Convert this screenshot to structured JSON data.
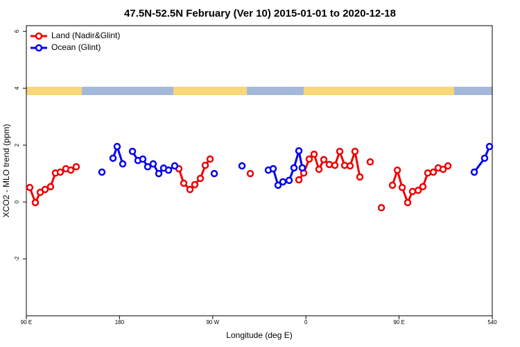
{
  "chart_data": {
    "type": "line",
    "title": "47.5N-52.5N February (Ver 10)   2015-01-01 to 2020-12-18",
    "x_label": "Longitude (deg E)",
    "y_label": "XCO2 - MLO trend (ppm)",
    "xlim": [
      90,
      540
    ],
    "ylim": [
      -4,
      6.2
    ],
    "xticks": [
      {
        "value": 90,
        "label": "90 E"
      },
      180,
      {
        "value": 270,
        "label": "90 W"
      },
      {
        "value": 360,
        "label": "0"
      },
      {
        "value": 450,
        "label": "90 E"
      },
      540
    ],
    "yticks": [
      -2,
      0,
      2,
      4,
      6
    ],
    "legend": "top-left",
    "series": [
      {
        "name": "Land (Nadir&Glint)",
        "color": "#ee0000",
        "x": [
          93.3,
          98.7,
          103.4,
          108.1,
          113.4,
          118.1,
          122.8,
          128.2,
          132.9,
          138.2,
          null,
          237.3,
          242.0,
          248.0,
          252.7,
          258.1,
          262.8,
          267.5,
          null,
          306.3,
          null,
          353.2,
          357.9,
          363.2,
          367.9,
          372.6,
          377.3,
          382.6,
          388.0,
          392.7,
          397.4,
          402.7,
          407.4,
          412.1,
          null,
          422.1,
          null,
          432.9,
          null,
          443.6,
          448.3,
          453.0,
          458.3,
          463.0,
          468.4,
          473.0,
          477.7,
          483.1,
          487.8,
          492.5,
          497.2
        ],
        "values": [
          0.51,
          -0.02,
          0.34,
          0.44,
          0.54,
          1.02,
          1.05,
          1.17,
          1.12,
          1.24,
          null,
          1.17,
          0.66,
          0.44,
          0.61,
          0.83,
          1.29,
          1.51,
          null,
          1.0,
          null,
          0.78,
          1.02,
          1.51,
          1.68,
          1.15,
          1.49,
          1.32,
          1.29,
          1.78,
          1.29,
          1.27,
          1.78,
          0.88,
          null,
          1.41,
          null,
          -0.2,
          null,
          0.59,
          1.12,
          0.51,
          -0.02,
          0.37,
          0.41,
          0.54,
          1.02,
          1.05,
          1.2,
          1.15,
          1.27
        ]
      },
      {
        "name": "Ocean (Glint)",
        "color": "#0000ee",
        "x": [
          163.0,
          null,
          173.7,
          177.7,
          183.1,
          null,
          192.5,
          197.8,
          202.5,
          207.2,
          212.5,
          217.9,
          222.6,
          227.3,
          233.3,
          null,
          271.5,
          null,
          298.3,
          null,
          323.7,
          328.4,
          333.1,
          337.8,
          343.8,
          348.5,
          353.2,
          356.5,
          null,
          522.6,
          532.6,
          537.3
        ],
        "values": [
          1.05,
          null,
          1.54,
          1.95,
          1.34,
          null,
          1.78,
          1.46,
          1.51,
          1.24,
          1.34,
          1.0,
          1.19,
          1.12,
          1.27,
          null,
          1.0,
          null,
          1.27,
          null,
          1.12,
          1.17,
          0.59,
          0.71,
          0.76,
          1.2,
          1.8,
          1.2,
          null,
          1.05,
          1.54,
          1.95
        ]
      }
    ]
  }
}
